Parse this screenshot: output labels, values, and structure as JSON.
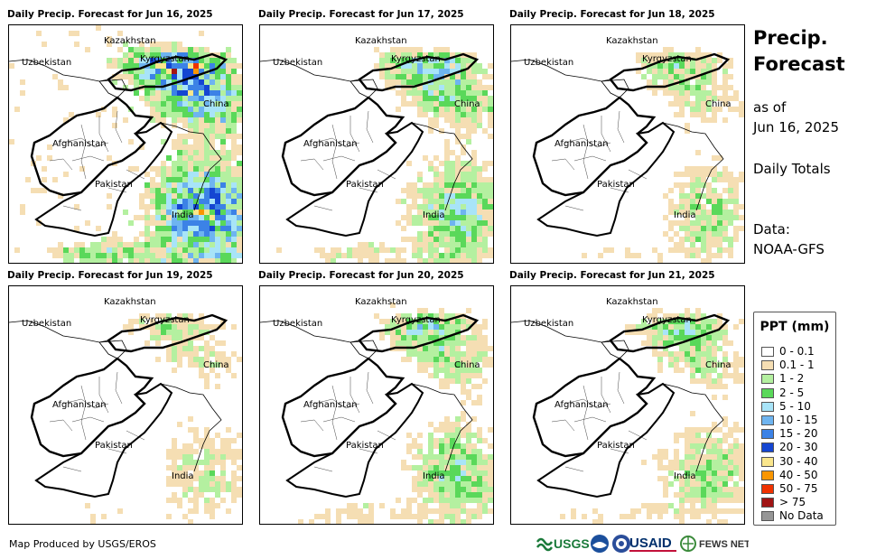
{
  "panels": [
    {
      "title": "Daily Precip. Forecast for Jun 16, 2025",
      "intensity": 0.9
    },
    {
      "title": "Daily Precip. Forecast for Jun 17, 2025",
      "intensity": 0.55
    },
    {
      "title": "Daily Precip. Forecast for Jun 18, 2025",
      "intensity": 0.35
    },
    {
      "title": "Daily Precip. Forecast for Jun 19, 2025",
      "intensity": 0.3
    },
    {
      "title": "Daily Precip. Forecast for Jun 20, 2025",
      "intensity": 0.45
    },
    {
      "title": "Daily Precip. Forecast for Jun 21, 2025",
      "intensity": 0.4
    }
  ],
  "map_labels": {
    "kazakhstan": "Kazakhstan",
    "uzbekistan": "Uzbekistan",
    "kyrgyzstan": "Kyrgyzstan",
    "china": "China",
    "afghanistan": "Afghanistan",
    "pakistan": "Pakistan",
    "india": "India"
  },
  "side": {
    "title_line1": "Precip.",
    "title_line2": "Forecast",
    "as_of": "as of",
    "date": "Jun 16, 2025",
    "totals": "Daily Totals",
    "data_label": "Data:",
    "data_source": "NOAA-GFS"
  },
  "legend": {
    "title": "PPT (mm)",
    "items": [
      {
        "label": "0 - 0.1",
        "color": "#ffffff"
      },
      {
        "label": "0.1 - 1",
        "color": "#f5deb3"
      },
      {
        "label": "1 - 2",
        "color": "#b4f0a0"
      },
      {
        "label": "2 - 5",
        "color": "#5ad85a"
      },
      {
        "label": "5 - 10",
        "color": "#a8e4f8"
      },
      {
        "label": "10 - 15",
        "color": "#6eb4f0"
      },
      {
        "label": "15 - 20",
        "color": "#3c82e6"
      },
      {
        "label": "20 - 30",
        "color": "#1446d2"
      },
      {
        "label": "30 - 40",
        "color": "#fae68c"
      },
      {
        "label": "40 - 50",
        "color": "#fa9600"
      },
      {
        "label": "50 - 75",
        "color": "#f03200"
      },
      {
        "label": "> 75",
        "color": "#a01414"
      },
      {
        "label": "No Data",
        "color": "#969696"
      }
    ]
  },
  "credit": "Map Produced by USGS/EROS",
  "logos": {
    "usgs": "USGS",
    "usaid": "USAID",
    "fewsnet": "FEWS NET"
  }
}
